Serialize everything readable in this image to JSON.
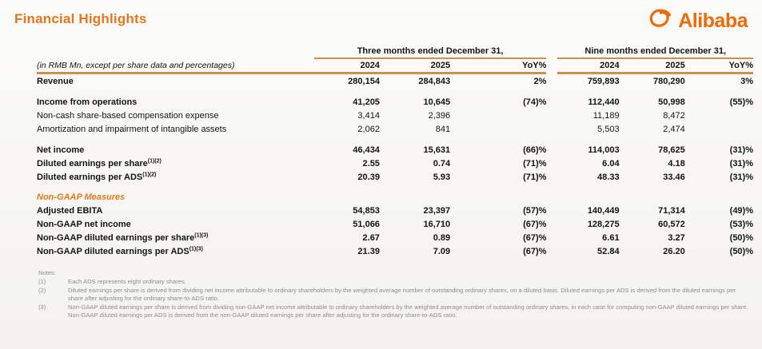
{
  "page": {
    "title": "Financial Highlights"
  },
  "logo": {
    "word": "Alibaba",
    "icon": "alibaba-smile-mark",
    "color": "#ed6a06"
  },
  "colors": {
    "accent_orange": "#e0771f",
    "rule_tan": "#c9914f",
    "notes_gray": "#8e8e8e"
  },
  "table": {
    "unit_note": "(in RMB Mn, except per share data and percentages)",
    "groups": [
      {
        "label": "Three months ended December 31,"
      },
      {
        "label": "Nine months ended December 31,"
      }
    ],
    "col_headers": [
      "2024",
      "2025",
      "YoY%",
      "2024",
      "2025",
      "YoY%"
    ],
    "rows": [
      {
        "type": "data",
        "bold": true,
        "label": "Revenue",
        "sup": "",
        "values": [
          "280,154",
          "284,843",
          "2%",
          "759,893",
          "780,290",
          "3%"
        ]
      },
      {
        "type": "spacer"
      },
      {
        "type": "data",
        "bold": true,
        "label": "Income from operations",
        "sup": "",
        "values": [
          "41,205",
          "10,645",
          "(74)%",
          "112,440",
          "50,998",
          "(55)%"
        ]
      },
      {
        "type": "data",
        "bold": false,
        "label": "Non-cash share-based compensation expense",
        "sup": "",
        "values": [
          "3,414",
          "2,396",
          "",
          "11,189",
          "8,472",
          ""
        ]
      },
      {
        "type": "data",
        "bold": false,
        "label": "Amortization and impairment of intangible assets",
        "sup": "",
        "values": [
          "2,062",
          "841",
          "",
          "5,503",
          "2,474",
          ""
        ]
      },
      {
        "type": "spacer"
      },
      {
        "type": "data",
        "bold": true,
        "label": "Net income",
        "sup": "",
        "values": [
          "46,434",
          "15,631",
          "(66)%",
          "114,003",
          "78,625",
          "(31)%"
        ]
      },
      {
        "type": "data",
        "bold": true,
        "label": "Diluted earnings per share",
        "sup": "(1)(2)",
        "values": [
          "2.55",
          "0.74",
          "(71)%",
          "6.04",
          "4.18",
          "(31)%"
        ]
      },
      {
        "type": "data",
        "bold": true,
        "label": "Diluted earnings per ADS",
        "sup": "(1)(2)",
        "values": [
          "20.39",
          "5.93",
          "(71)%",
          "48.33",
          "33.46",
          "(31)%"
        ]
      },
      {
        "type": "spacer"
      },
      {
        "type": "section",
        "label": "Non-GAAP Measures"
      },
      {
        "type": "data",
        "bold": true,
        "label": "Adjusted EBITA",
        "sup": "",
        "values": [
          "54,853",
          "23,397",
          "(57)%",
          "140,449",
          "71,314",
          "(49)%"
        ]
      },
      {
        "type": "data",
        "bold": true,
        "label": "Non-GAAP net income",
        "sup": "",
        "values": [
          "51,066",
          "16,710",
          "(67)%",
          "128,275",
          "60,572",
          "(53)%"
        ]
      },
      {
        "type": "data",
        "bold": true,
        "label": "Non-GAAP diluted earnings per share",
        "sup": "(1)(3)",
        "values": [
          "2.67",
          "0.89",
          "(67)%",
          "6.61",
          "3.27",
          "(50)%"
        ]
      },
      {
        "type": "data",
        "bold": true,
        "label": "Non-GAAP diluted earnings per ADS",
        "sup": "(1)(3)",
        "values": [
          "21.39",
          "7.09",
          "(67)%",
          "52.84",
          "26.20",
          "(50)%"
        ]
      }
    ]
  },
  "notes": {
    "heading": "Notes:",
    "items": [
      {
        "num": "(1)",
        "text": "Each ADS represents eight ordinary shares."
      },
      {
        "num": "(2)",
        "text": "Diluted earnings per share is derived from dividing net income attributable to ordinary shareholders by the weighted average number of outstanding ordinary shares, on a diluted basis. Diluted earnings per ADS is derived from the diluted earnings per share after adjusting for the ordinary share-to-ADS ratio."
      },
      {
        "num": "(3)",
        "text": "Non-GAAP diluted earnings per share is derived from dividing non-GAAP net income attributable to ordinary shareholders by the weighted average number of outstanding ordinary shares, in each case for computing non-GAAP diluted earnings per share. Non-GAAP diluted earnings per ADS is derived from the non-GAAP diluted earnings per share after adjusting for the ordinary share-to-ADS ratio."
      }
    ]
  }
}
